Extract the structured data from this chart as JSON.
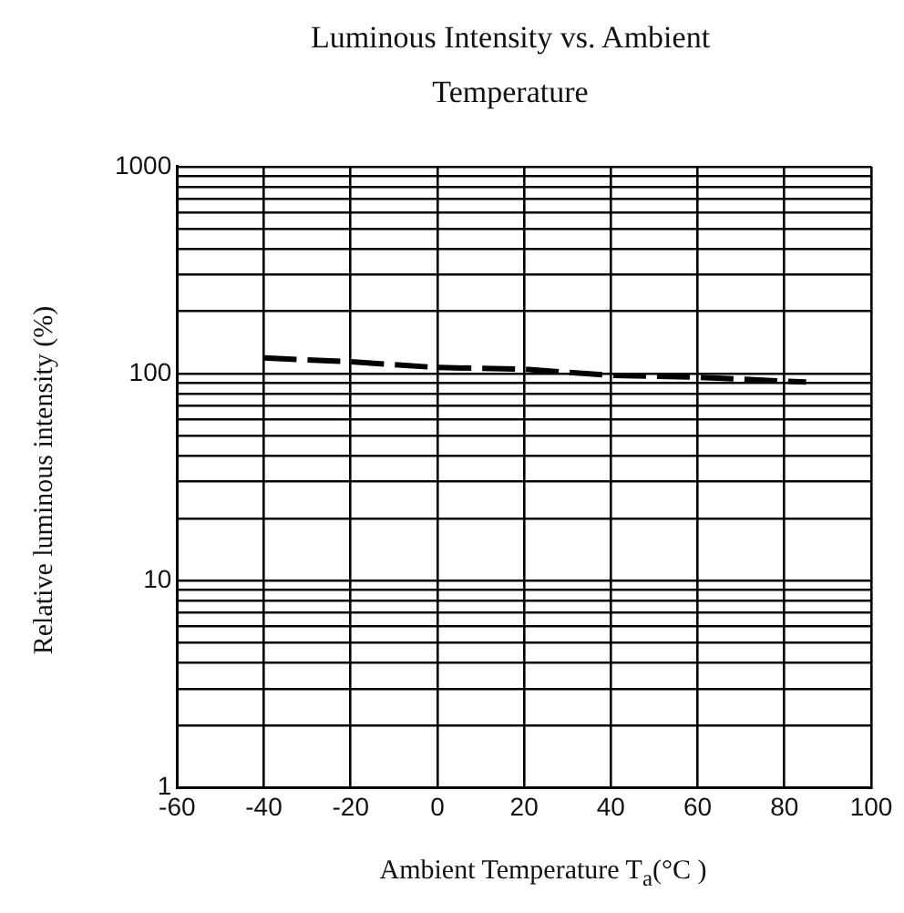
{
  "chart_data": {
    "type": "line",
    "title": "Luminous Intensity vs. Ambient Temperature",
    "xlabel": "Ambient Temperature T$_{a}$(°C )",
    "ylabel": "Relative luminous intensity (%)",
    "x": [
      -40,
      -20,
      0,
      20,
      40,
      60,
      85
    ],
    "values": [
      119,
      114,
      107,
      105,
      98,
      96,
      91
    ],
    "color": "#000000",
    "line_style": "dashed",
    "marker": "none",
    "log": "y",
    "grid": true,
    "legend": false,
    "xlim": [
      -60,
      100
    ],
    "xticks": [
      -60,
      -40,
      -20,
      0,
      20,
      40,
      60,
      80,
      100
    ],
    "ylim": [
      1,
      1000
    ],
    "yticks": [
      1,
      {
        "value": 2,
        "label": null
      },
      {
        "value": 3,
        "label": null
      },
      {
        "value": 4,
        "label": null
      },
      {
        "value": 5,
        "label": null
      },
      {
        "value": 6,
        "label": null
      },
      {
        "value": 7,
        "label": null
      },
      {
        "value": 8,
        "label": null
      },
      {
        "value": 9,
        "label": null
      },
      10,
      {
        "value": 20,
        "label": null
      },
      {
        "value": 30,
        "label": null
      },
      {
        "value": 40,
        "label": null
      },
      {
        "value": 50,
        "label": null
      },
      {
        "value": 60,
        "label": null
      },
      {
        "value": 70,
        "label": null
      },
      {
        "value": 80,
        "label": null
      },
      {
        "value": 90,
        "label": null
      },
      100,
      {
        "value": 200,
        "label": null
      },
      {
        "value": 300,
        "label": null
      },
      {
        "value": 400,
        "label": null
      },
      {
        "value": 500,
        "label": null
      },
      {
        "value": 600,
        "label": null
      },
      {
        "value": 700,
        "label": null
      },
      {
        "value": 800,
        "label": null
      },
      {
        "value": 900,
        "label": null
      },
      1000
    ]
  }
}
